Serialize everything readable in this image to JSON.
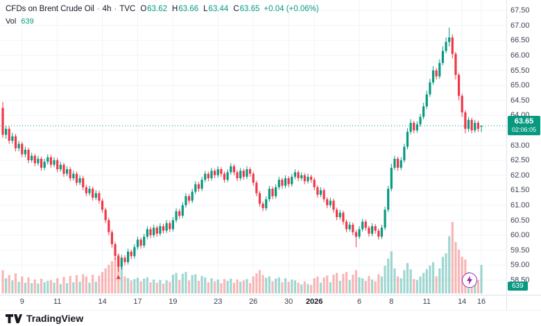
{
  "header": {
    "title": "CFDs on Brent Crude Oil",
    "sep": "·",
    "interval": "4h",
    "exchange": "TVC",
    "ohlc": {
      "o_label": "O",
      "o": "63.62",
      "h_label": "H",
      "h": "63.66",
      "l_label": "L",
      "l": "63.44",
      "c_label": "C",
      "c": "63.65"
    },
    "change": "+0.04 (+0.06%)",
    "vol_label": "Vol",
    "vol_value": "639"
  },
  "badges": {
    "price": "63.65",
    "countdown": "02:06:05",
    "volume": "639"
  },
  "footer": {
    "logo_text": "TradingView"
  },
  "colors": {
    "up": "#089981",
    "down": "#f23645",
    "volume_up": "rgba(42,166,152,0.45)",
    "volume_down": "rgba(239,83,80,0.42)",
    "grid": "#f0f3fa",
    "axis_text": "#3c4250",
    "badge_bg": "#089981",
    "flash_purple": "#8e24aa"
  },
  "chart_data": {
    "type": "candlestick",
    "title": "CFDs on Brent Crude Oil",
    "interval": "4h",
    "exchange": "TVC",
    "columns": [
      "open",
      "high",
      "low",
      "close",
      "volume"
    ],
    "last": {
      "open": 63.62,
      "high": 63.66,
      "low": 63.44,
      "close": 63.65,
      "change": 0.04,
      "change_pct": 0.06,
      "volume": 639
    },
    "price_axis": {
      "max": 67.85,
      "min": 58.01,
      "tick_step": 0.5,
      "labels": [
        "67.50",
        "67.00",
        "66.50",
        "66.00",
        "65.50",
        "65.00",
        "64.50",
        "64.00",
        "63.50",
        "63.00",
        "62.50",
        "62.00",
        "61.50",
        "61.00",
        "60.50",
        "60.00",
        "59.50",
        "59.00",
        "58.50"
      ]
    },
    "time_axis": {
      "labels": [
        {
          "text": "9",
          "index": 6
        },
        {
          "text": "11",
          "index": 17
        },
        {
          "text": "14",
          "index": 31
        },
        {
          "text": "17",
          "index": 42
        },
        {
          "text": "19",
          "index": 53
        },
        {
          "text": "23",
          "index": 67
        },
        {
          "text": "26",
          "index": 78
        },
        {
          "text": "30",
          "index": 89
        },
        {
          "text": "2026",
          "index": 97,
          "bold": true
        },
        {
          "text": "6",
          "index": 111
        },
        {
          "text": "8",
          "index": 121
        },
        {
          "text": "11",
          "index": 132
        },
        {
          "text": "14",
          "index": 143
        },
        {
          "text": "16",
          "index": 149
        }
      ]
    },
    "marks": {
      "current_price_line": 63.65,
      "low_marker": {
        "index": 36,
        "price": 58.77
      }
    },
    "volume_max_scale": 1600,
    "candles": [
      [
        64.25,
        64.45,
        63.25,
        63.35,
        520
      ],
      [
        63.35,
        63.65,
        63.22,
        63.55,
        340
      ],
      [
        63.55,
        63.63,
        63.05,
        63.15,
        410
      ],
      [
        63.15,
        63.42,
        63.05,
        63.3,
        290
      ],
      [
        63.3,
        63.38,
        62.8,
        62.9,
        450
      ],
      [
        62.9,
        63.15,
        62.8,
        63.05,
        260
      ],
      [
        63.05,
        63.12,
        62.6,
        62.7,
        380
      ],
      [
        62.7,
        62.95,
        62.6,
        62.85,
        240
      ],
      [
        62.85,
        62.92,
        62.4,
        62.5,
        360
      ],
      [
        62.5,
        62.75,
        62.42,
        62.65,
        230
      ],
      [
        62.65,
        62.72,
        62.3,
        62.4,
        310
      ],
      [
        62.4,
        62.65,
        62.32,
        62.55,
        220
      ],
      [
        62.55,
        62.62,
        62.15,
        62.25,
        330
      ],
      [
        62.25,
        62.55,
        62.17,
        62.45,
        250
      ],
      [
        62.45,
        62.7,
        62.36,
        62.6,
        280
      ],
      [
        62.6,
        62.68,
        62.25,
        62.35,
        300
      ],
      [
        62.35,
        62.6,
        62.27,
        62.5,
        240
      ],
      [
        62.5,
        62.58,
        62.1,
        62.2,
        340
      ],
      [
        62.2,
        62.45,
        62.12,
        62.35,
        210
      ],
      [
        62.35,
        62.42,
        61.95,
        62.05,
        370
      ],
      [
        62.05,
        62.3,
        61.97,
        62.2,
        230
      ],
      [
        62.2,
        62.28,
        61.8,
        61.9,
        390
      ],
      [
        61.9,
        62.15,
        61.82,
        62.05,
        250
      ],
      [
        62.05,
        62.12,
        61.65,
        61.75,
        410
      ],
      [
        61.75,
        62.0,
        61.67,
        61.9,
        260
      ],
      [
        61.9,
        61.98,
        61.5,
        61.6,
        430
      ],
      [
        61.6,
        61.68,
        61.3,
        61.4,
        380
      ],
      [
        61.4,
        61.65,
        61.32,
        61.55,
        240
      ],
      [
        61.55,
        61.62,
        61.15,
        61.25,
        420
      ],
      [
        61.25,
        61.5,
        61.17,
        61.4,
        260
      ],
      [
        61.4,
        61.48,
        61.05,
        61.15,
        400
      ],
      [
        61.15,
        61.22,
        60.75,
        60.85,
        480
      ],
      [
        60.85,
        60.92,
        60.4,
        60.5,
        560
      ],
      [
        60.5,
        60.58,
        60.0,
        60.1,
        640
      ],
      [
        60.1,
        60.18,
        59.58,
        59.7,
        720
      ],
      [
        59.7,
        59.78,
        59.18,
        59.3,
        800
      ],
      [
        59.3,
        59.38,
        58.77,
        58.95,
        880
      ],
      [
        58.95,
        59.35,
        58.85,
        59.25,
        620
      ],
      [
        59.25,
        59.33,
        59.0,
        59.1,
        380
      ],
      [
        59.1,
        59.55,
        59.02,
        59.45,
        340
      ],
      [
        59.45,
        59.52,
        59.2,
        59.3,
        290
      ],
      [
        59.3,
        59.7,
        59.22,
        59.6,
        320
      ],
      [
        59.6,
        59.95,
        59.52,
        59.85,
        350
      ],
      [
        59.85,
        59.92,
        59.55,
        59.65,
        270
      ],
      [
        59.65,
        60.05,
        59.57,
        59.95,
        330
      ],
      [
        59.95,
        60.3,
        59.87,
        60.2,
        360
      ],
      [
        60.2,
        60.28,
        59.9,
        60.0,
        250
      ],
      [
        60.0,
        60.35,
        59.92,
        60.25,
        310
      ],
      [
        60.25,
        60.32,
        59.95,
        60.05,
        240
      ],
      [
        60.05,
        60.4,
        59.97,
        60.3,
        300
      ],
      [
        60.3,
        60.38,
        60.05,
        60.15,
        220
      ],
      [
        60.15,
        60.5,
        60.07,
        60.4,
        290
      ],
      [
        60.4,
        60.48,
        60.1,
        60.2,
        260
      ],
      [
        60.2,
        60.6,
        60.12,
        60.5,
        420
      ],
      [
        60.5,
        60.9,
        60.42,
        60.8,
        460
      ],
      [
        60.8,
        60.88,
        60.55,
        60.65,
        300
      ],
      [
        60.65,
        61.1,
        60.57,
        61.0,
        440
      ],
      [
        61.0,
        61.4,
        60.92,
        61.3,
        480
      ],
      [
        61.3,
        61.38,
        61.05,
        61.15,
        290
      ],
      [
        61.15,
        61.55,
        61.07,
        61.45,
        410
      ],
      [
        61.45,
        61.8,
        61.37,
        61.7,
        430
      ],
      [
        61.7,
        61.78,
        61.45,
        61.55,
        280
      ],
      [
        61.55,
        61.95,
        61.47,
        61.85,
        390
      ],
      [
        61.85,
        62.15,
        61.77,
        62.05,
        360
      ],
      [
        62.05,
        62.12,
        61.8,
        61.9,
        250
      ],
      [
        61.9,
        62.25,
        61.82,
        62.15,
        340
      ],
      [
        62.15,
        62.22,
        61.9,
        62.0,
        270
      ],
      [
        62.0,
        62.3,
        61.92,
        62.2,
        310
      ],
      [
        62.2,
        62.27,
        61.95,
        62.05,
        230
      ],
      [
        62.05,
        62.12,
        61.75,
        61.85,
        320
      ],
      [
        61.85,
        62.2,
        61.77,
        62.1,
        280
      ],
      [
        62.1,
        62.4,
        62.02,
        62.3,
        330
      ],
      [
        62.3,
        62.37,
        62.0,
        62.1,
        240
      ],
      [
        62.1,
        62.17,
        61.8,
        61.9,
        310
      ],
      [
        61.9,
        62.25,
        61.82,
        62.15,
        260
      ],
      [
        62.15,
        62.22,
        61.85,
        61.95,
        290
      ],
      [
        61.95,
        62.3,
        61.87,
        62.2,
        320
      ],
      [
        62.2,
        62.27,
        61.95,
        62.05,
        230
      ],
      [
        62.05,
        62.12,
        61.65,
        61.75,
        380
      ],
      [
        61.75,
        61.82,
        61.3,
        61.4,
        450
      ],
      [
        61.4,
        61.47,
        60.95,
        61.05,
        520
      ],
      [
        61.05,
        61.12,
        60.8,
        60.9,
        410
      ],
      [
        60.9,
        61.3,
        60.82,
        61.2,
        350
      ],
      [
        61.2,
        61.65,
        61.12,
        61.55,
        380
      ],
      [
        61.55,
        61.62,
        61.2,
        61.3,
        270
      ],
      [
        61.3,
        61.7,
        61.22,
        61.6,
        330
      ],
      [
        61.6,
        61.95,
        61.52,
        61.85,
        360
      ],
      [
        61.85,
        61.92,
        61.55,
        61.65,
        250
      ],
      [
        61.65,
        62.0,
        61.57,
        61.9,
        340
      ],
      [
        61.9,
        61.97,
        61.6,
        61.7,
        260
      ],
      [
        61.7,
        62.05,
        61.62,
        61.95,
        310
      ],
      [
        61.95,
        62.2,
        61.87,
        62.1,
        290
      ],
      [
        62.1,
        62.17,
        61.8,
        61.9,
        240
      ],
      [
        61.9,
        62.1,
        61.82,
        62.0,
        200
      ],
      [
        62.0,
        62.07,
        61.7,
        61.8,
        270
      ],
      [
        61.8,
        62.05,
        61.72,
        61.95,
        210
      ],
      [
        61.95,
        62.02,
        61.75,
        61.85,
        190
      ],
      [
        61.85,
        61.92,
        61.5,
        61.6,
        340
      ],
      [
        61.6,
        61.67,
        61.25,
        61.35,
        380
      ],
      [
        61.35,
        61.6,
        61.27,
        61.5,
        240
      ],
      [
        61.5,
        61.57,
        61.1,
        61.2,
        360
      ],
      [
        61.2,
        61.27,
        60.9,
        61.0,
        400
      ],
      [
        61.0,
        61.25,
        60.92,
        61.15,
        250
      ],
      [
        61.15,
        61.22,
        60.75,
        60.85,
        420
      ],
      [
        60.85,
        60.92,
        60.5,
        60.6,
        460
      ],
      [
        60.6,
        60.85,
        60.52,
        60.75,
        280
      ],
      [
        60.75,
        60.82,
        60.35,
        60.45,
        440
      ],
      [
        60.45,
        60.52,
        60.1,
        60.2,
        480
      ],
      [
        60.2,
        60.45,
        60.12,
        60.35,
        300
      ],
      [
        60.35,
        60.42,
        60.0,
        60.1,
        420
      ],
      [
        60.1,
        60.17,
        59.6,
        59.95,
        520
      ],
      [
        59.95,
        60.3,
        59.87,
        60.2,
        360
      ],
      [
        60.2,
        60.55,
        60.12,
        60.45,
        340
      ],
      [
        60.45,
        60.52,
        60.15,
        60.25,
        280
      ],
      [
        60.25,
        60.32,
        59.95,
        60.05,
        390
      ],
      [
        60.05,
        60.4,
        59.97,
        60.3,
        310
      ],
      [
        60.3,
        60.37,
        60.05,
        60.15,
        270
      ],
      [
        60.15,
        60.22,
        59.85,
        59.95,
        430
      ],
      [
        59.95,
        60.35,
        59.87,
        60.25,
        380
      ],
      [
        60.25,
        60.95,
        60.17,
        60.85,
        620
      ],
      [
        60.85,
        61.65,
        60.77,
        61.55,
        780
      ],
      [
        61.55,
        62.38,
        61.47,
        62.25,
        940
      ],
      [
        62.25,
        62.65,
        62.17,
        62.55,
        560
      ],
      [
        62.55,
        62.62,
        62.15,
        62.25,
        380
      ],
      [
        62.25,
        62.6,
        62.17,
        62.5,
        340
      ],
      [
        62.5,
        63.05,
        62.42,
        62.95,
        520
      ],
      [
        62.95,
        63.57,
        62.87,
        63.45,
        680
      ],
      [
        63.45,
        63.87,
        63.37,
        63.75,
        540
      ],
      [
        63.75,
        63.82,
        63.4,
        63.5,
        320
      ],
      [
        63.5,
        63.8,
        63.42,
        63.7,
        300
      ],
      [
        63.7,
        64.05,
        63.62,
        63.95,
        380
      ],
      [
        63.95,
        64.42,
        63.87,
        64.3,
        460
      ],
      [
        64.3,
        64.82,
        64.22,
        64.7,
        540
      ],
      [
        64.7,
        65.22,
        64.62,
        65.1,
        620
      ],
      [
        65.1,
        65.64,
        65.02,
        65.5,
        700
      ],
      [
        65.5,
        65.58,
        65.2,
        65.3,
        380
      ],
      [
        65.3,
        65.87,
        65.22,
        65.75,
        560
      ],
      [
        65.75,
        66.3,
        65.67,
        66.15,
        820
      ],
      [
        66.15,
        66.6,
        66.07,
        66.45,
        900
      ],
      [
        66.45,
        66.93,
        66.3,
        66.6,
        1280
      ],
      [
        66.6,
        66.7,
        65.9,
        66.05,
        1600
      ],
      [
        66.05,
        66.12,
        65.2,
        65.35,
        1150
      ],
      [
        65.35,
        65.42,
        64.5,
        64.65,
        980
      ],
      [
        64.65,
        64.72,
        63.95,
        64.1,
        820
      ],
      [
        64.1,
        64.17,
        63.4,
        63.55,
        760
      ],
      [
        63.55,
        63.95,
        63.45,
        63.85,
        480
      ],
      [
        63.85,
        63.92,
        63.4,
        63.5,
        420
      ],
      [
        63.5,
        63.85,
        63.42,
        63.75,
        360
      ],
      [
        63.75,
        63.82,
        63.45,
        63.55,
        300
      ],
      [
        63.62,
        63.66,
        63.44,
        63.65,
        639
      ]
    ]
  }
}
